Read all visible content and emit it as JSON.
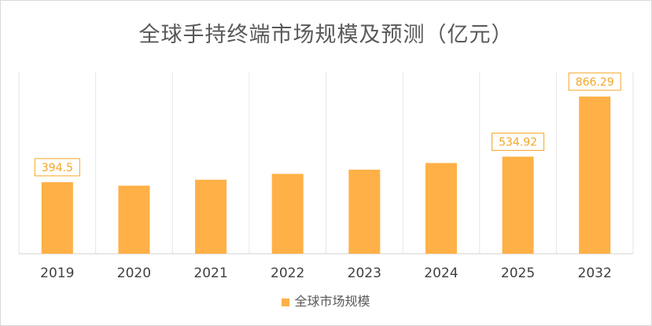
{
  "chart_data": {
    "type": "bar",
    "title": "全球手持终端市场规模及预测（亿元）",
    "categories": [
      "2019",
      "2020",
      "2021",
      "2022",
      "2023",
      "2024",
      "2025",
      "2032"
    ],
    "series": [
      {
        "name": "全球市场规模",
        "values": [
          394.5,
          375,
          408,
          440,
          463,
          500,
          534.92,
          866.29
        ],
        "labels": [
          "394.5",
          "",
          "",
          "",
          "",
          "",
          "534.92",
          "866.29"
        ]
      }
    ],
    "ylim": [
      0,
      1000
    ],
    "grid": "vertical",
    "legend": "bottom",
    "bar_color": "#FFB046",
    "label_color": "#F5A623"
  }
}
